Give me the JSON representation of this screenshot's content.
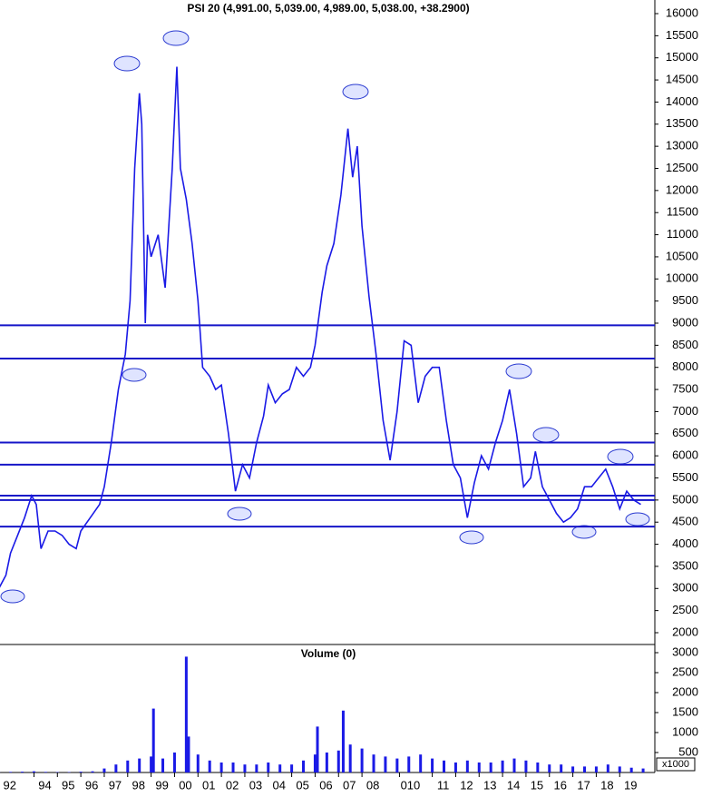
{
  "chart_data": [
    {
      "type": "line",
      "title": "PSI 20 (4,991.00, 5,039.00, 4,989.00, 5,038.00, +38.2900)",
      "x": [
        1992.5,
        1992.8,
        1993.0,
        1993.3,
        1993.6,
        1993.9,
        1994.1,
        1994.3,
        1994.6,
        1994.9,
        1995.2,
        1995.5,
        1995.8,
        1996.0,
        1996.4,
        1996.8,
        1997.0,
        1997.3,
        1997.6,
        1997.9,
        1998.1,
        1998.3,
        1998.5,
        1998.6,
        1998.75,
        1998.85,
        1999.0,
        1999.3,
        1999.6,
        1999.9,
        2000.1,
        2000.25,
        2000.5,
        2000.75,
        2001.0,
        2001.2,
        2001.5,
        2001.75,
        2002.0,
        2002.3,
        2002.6,
        2002.9,
        2003.2,
        2003.5,
        2003.8,
        2004.0,
        2004.3,
        2004.6,
        2004.9,
        2005.2,
        2005.5,
        2005.8,
        2006.0,
        2006.3,
        2006.5,
        2006.8,
        2007.1,
        2007.4,
        2007.6,
        2007.8,
        2008.0,
        2008.3,
        2008.6,
        2008.9,
        2009.2,
        2009.5,
        2009.8,
        2010.1,
        2010.4,
        2010.7,
        2011.0,
        2011.3,
        2011.6,
        2011.9,
        2012.2,
        2012.5,
        2012.8,
        2013.1,
        2013.4,
        2013.7,
        2014.0,
        2014.3,
        2014.6,
        2014.9,
        2015.2,
        2015.4,
        2015.7,
        2016.0,
        2016.3,
        2016.6,
        2016.9,
        2017.2,
        2017.5,
        2017.8,
        2018.1,
        2018.4,
        2018.7,
        2019.0,
        2019.3,
        2019.6,
        2019.9
      ],
      "series": [
        {
          "color": "#1a1ae6",
          "values": [
            3000,
            3300,
            3800,
            4200,
            4600,
            5100,
            4900,
            3900,
            4300,
            4300,
            4200,
            4000,
            3900,
            4300,
            4600,
            4900,
            5300,
            6300,
            7500,
            8300,
            9500,
            12500,
            14200,
            13500,
            9000,
            11000,
            10500,
            11000,
            9800,
            12500,
            14800,
            12500,
            11800,
            10800,
            9500,
            8000,
            7800,
            7500,
            7600,
            6500,
            5200,
            5800,
            5500,
            6300,
            6900,
            7600,
            7200,
            7400,
            7500,
            8000,
            7800,
            8000,
            8500,
            9700,
            10300,
            10800,
            11900,
            13400,
            12300,
            13000,
            11200,
            9600,
            8300,
            6800,
            5900,
            7000,
            8600,
            8500,
            7200,
            7800,
            8000,
            8000,
            6800,
            5800,
            5500,
            4600,
            5400,
            6000,
            5700,
            6300,
            6800,
            7500,
            6500,
            5300,
            5500,
            6100,
            5300,
            5000,
            4700,
            4500,
            4600,
            4800,
            5300,
            5300,
            5500,
            5700,
            5300,
            4800,
            5200,
            5000,
            4900
          ]
        }
      ],
      "levels": [
        8950,
        8200,
        6300,
        5800,
        5100,
        5000,
        4400
      ],
      "level_color": "#1515c8",
      "xlim": [
        1992.55,
        2020.5
      ],
      "xticks": [
        {
          "value": 1992.5,
          "label": "92"
        },
        {
          "value": 1994,
          "label": "94"
        },
        {
          "value": 1995,
          "label": "95"
        },
        {
          "value": 1996,
          "label": "96"
        },
        {
          "value": 1997,
          "label": "97"
        },
        {
          "value": 1998,
          "label": "98"
        },
        {
          "value": 1999,
          "label": "99"
        },
        {
          "value": 2000,
          "label": "00"
        },
        {
          "value": 2001,
          "label": "01"
        },
        {
          "value": 2002,
          "label": "02"
        },
        {
          "value": 2003,
          "label": "03"
        },
        {
          "value": 2004,
          "label": "04"
        },
        {
          "value": 2005,
          "label": "05"
        },
        {
          "value": 2006,
          "label": "06"
        },
        {
          "value": 2007,
          "label": "07"
        },
        {
          "value": 2008,
          "label": "08"
        },
        {
          "value": 2009.6,
          "label": "010"
        },
        {
          "value": 2011,
          "label": "11"
        },
        {
          "value": 2012,
          "label": "12"
        },
        {
          "value": 2013,
          "label": "13"
        },
        {
          "value": 2014,
          "label": "14"
        },
        {
          "value": 2015,
          "label": "15"
        },
        {
          "value": 2016,
          "label": "16"
        },
        {
          "value": 2017,
          "label": "17"
        },
        {
          "value": 2018,
          "label": "18"
        },
        {
          "value": 2019,
          "label": "19"
        }
      ],
      "ylim": [
        1700,
        16300
      ],
      "yticks": [
        2000,
        2500,
        3000,
        3500,
        4000,
        4500,
        5000,
        5500,
        6000,
        6500,
        7000,
        7500,
        8000,
        8500,
        9000,
        9500,
        10000,
        10500,
        11000,
        11500,
        12000,
        12500,
        13000,
        13500,
        14000,
        14500,
        15000,
        15500,
        16000
      ]
    },
    {
      "type": "bar",
      "title": "Volume (0)",
      "unit_label": "x1000",
      "color": "#1a1ae6",
      "x": [
        1992.5,
        1993,
        1993.5,
        1994,
        1994.5,
        1995,
        1995.5,
        1996,
        1996.5,
        1997,
        1997.5,
        1998,
        1998.5,
        1999,
        1999.1,
        1999.5,
        2000,
        2000.5,
        2000.6,
        2001,
        2001.5,
        2002,
        2002.5,
        2003,
        2003.5,
        2004,
        2004.5,
        2005,
        2005.5,
        2006,
        2006.1,
        2006.5,
        2007,
        2007.2,
        2007.5,
        2008,
        2008.5,
        2009,
        2009.5,
        2010,
        2010.5,
        2011,
        2011.5,
        2012,
        2012.5,
        2013,
        2013.5,
        2014,
        2014.5,
        2015,
        2015.5,
        2016,
        2016.5,
        2017,
        2017.5,
        2018,
        2018.5,
        2019,
        2019.5,
        2020
      ],
      "values": [
        10,
        15,
        20,
        30,
        15,
        10,
        10,
        20,
        30,
        100,
        200,
        300,
        350,
        400,
        1600,
        350,
        500,
        2900,
        900,
        450,
        300,
        250,
        250,
        200,
        200,
        250,
        200,
        200,
        300,
        450,
        1150,
        500,
        550,
        1550,
        700,
        600,
        450,
        400,
        350,
        400,
        450,
        350,
        300,
        250,
        300,
        250,
        250,
        300,
        350,
        300,
        250,
        200,
        200,
        150,
        150,
        150,
        200,
        150,
        120,
        100
      ],
      "ylim": [
        0,
        3150
      ],
      "yticks": [
        500,
        1000,
        1500,
        2000,
        2500,
        3000
      ]
    }
  ]
}
